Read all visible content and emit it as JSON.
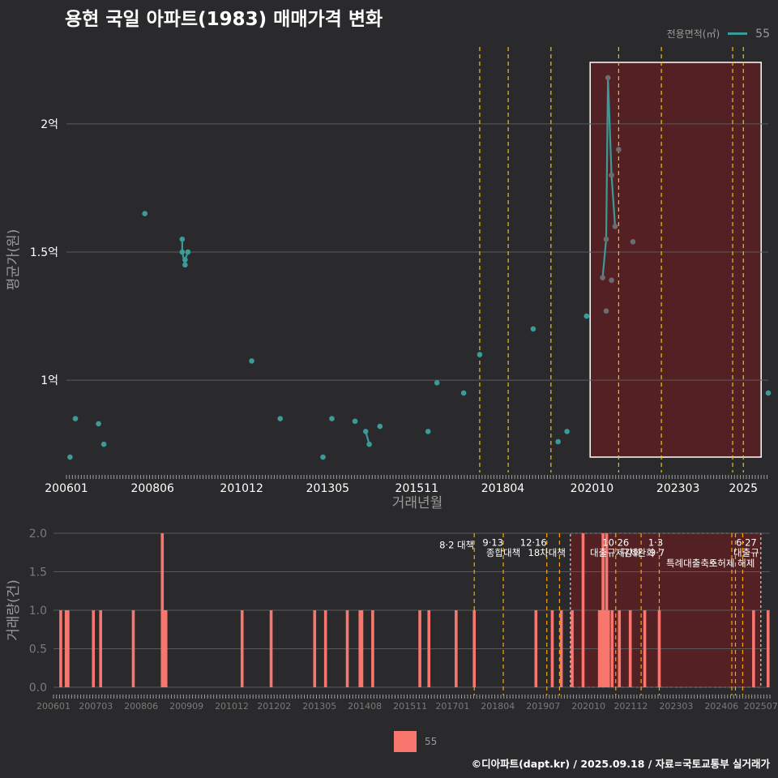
{
  "title": "용현 국일 아파트(1983) 매매가격 변화",
  "legend": {
    "label": "전용면적(㎡)",
    "value": "55"
  },
  "footer": "©디아파트(dapt.kr) / 2025.09.18 / 자료=국토교통부 실거래가",
  "colors": {
    "background": "#2a2a2c",
    "series": "#3a9b9b",
    "bar": "#f8766d",
    "vline": "#e6c619",
    "vline2": "#ffa500",
    "highlight_fill": "#5a1f22",
    "grid": "#5a5a5a"
  },
  "chart_data": [
    {
      "type": "line",
      "title": "용현 국일 아파트(1983) 매매가격 변화",
      "xlabel": "거래년월",
      "ylabel": "평균가(원)",
      "x_ticks": [
        "200601",
        "200806",
        "201012",
        "201305",
        "201511",
        "201804",
        "202010",
        "202303",
        "2025"
      ],
      "y_ticks": [
        {
          "value": 1.0,
          "label": "1억"
        },
        {
          "value": 1.5,
          "label": "1.5억"
        },
        {
          "value": 2.0,
          "label": "2억"
        }
      ],
      "xlim": [
        2006.0,
        2025.7
      ],
      "ylim": [
        0.64,
        2.3
      ],
      "series": [
        {
          "name": "55",
          "points": [
            {
              "x": 2006.1,
              "y": 0.7
            },
            {
              "x": 2006.25,
              "y": 0.85
            },
            {
              "x": 2006.9,
              "y": 0.83
            },
            {
              "x": 2007.05,
              "y": 0.75
            },
            {
              "x": 2008.2,
              "y": 1.65
            },
            {
              "x": 2009.25,
              "y": 1.55
            },
            {
              "x": 2009.25,
              "y": 1.5
            },
            {
              "x": 2009.33,
              "y": 1.45
            },
            {
              "x": 2009.33,
              "y": 1.47
            },
            {
              "x": 2009.41,
              "y": 1.5
            },
            {
              "x": 2011.2,
              "y": 1.075
            },
            {
              "x": 2012.0,
              "y": 0.85
            },
            {
              "x": 2013.2,
              "y": 0.7
            },
            {
              "x": 2013.45,
              "y": 0.85
            },
            {
              "x": 2014.1,
              "y": 0.84
            },
            {
              "x": 2014.4,
              "y": 0.8
            },
            {
              "x": 2014.5,
              "y": 0.75
            },
            {
              "x": 2014.8,
              "y": 0.82
            },
            {
              "x": 2016.15,
              "y": 0.8
            },
            {
              "x": 2016.4,
              "y": 0.99
            },
            {
              "x": 2017.15,
              "y": 0.95
            },
            {
              "x": 2017.6,
              "y": 1.1
            },
            {
              "x": 2019.1,
              "y": 1.2
            },
            {
              "x": 2019.8,
              "y": 0.76
            },
            {
              "x": 2020.05,
              "y": 0.8
            },
            {
              "x": 2020.6,
              "y": 1.25
            },
            {
              "x": 2021.05,
              "y": 1.4
            },
            {
              "x": 2021.15,
              "y": 1.27
            },
            {
              "x": 2021.15,
              "y": 1.55
            },
            {
              "x": 2021.2,
              "y": 2.18
            },
            {
              "x": 2021.3,
              "y": 1.8
            },
            {
              "x": 2021.3,
              "y": 1.39
            },
            {
              "x": 2021.4,
              "y": 1.6
            },
            {
              "x": 2021.5,
              "y": 1.9
            },
            {
              "x": 2021.9,
              "y": 1.54
            },
            {
              "x": 2025.7,
              "y": 0.95
            }
          ],
          "connected_segments": [
            [
              [
                2009.25,
                1.55
              ],
              [
                2009.25,
                1.5
              ],
              [
                2009.33,
                1.45
              ],
              [
                2009.33,
                1.47
              ],
              [
                2009.41,
                1.5
              ]
            ],
            [
              [
                2014.4,
                0.8
              ],
              [
                2014.5,
                0.75
              ]
            ],
            [
              [
                2021.05,
                1.4
              ],
              [
                2021.15,
                1.55
              ],
              [
                2021.2,
                2.18
              ],
              [
                2021.3,
                1.8
              ],
              [
                2021.4,
                1.6
              ]
            ]
          ]
        }
      ],
      "vlines": [
        2017.6,
        2018.4,
        2019.6,
        2021.5,
        2022.7,
        2024.7,
        2025.0
      ],
      "highlight_range": {
        "x": [
          2020.7,
          2025.5
        ],
        "y": [
          0.7,
          2.24
        ]
      }
    },
    {
      "type": "bar",
      "xlabel": "",
      "ylabel": "거래량(건)",
      "x_ticks": [
        "200601",
        "200703",
        "200806",
        "200909",
        "201012",
        "201202",
        "201305",
        "201408",
        "201511",
        "201701",
        "201804",
        "201907",
        "202010",
        "202112",
        "202303",
        "202406",
        "202507"
      ],
      "y_ticks": [
        0.0,
        0.5,
        1.0,
        1.5,
        2.0
      ],
      "ylim": [
        0,
        2
      ],
      "xlim": [
        2006.0,
        2025.75
      ],
      "series": [
        {
          "name": "55",
          "bars": [
            {
              "x": 2006.2,
              "value": 1
            },
            {
              "x": 2006.35,
              "value": 1
            },
            {
              "x": 2006.4,
              "value": 1
            },
            {
              "x": 2007.1,
              "value": 1
            },
            {
              "x": 2007.3,
              "value": 1
            },
            {
              "x": 2008.2,
              "value": 1
            },
            {
              "x": 2009.0,
              "value": 2
            },
            {
              "x": 2009.05,
              "value": 1
            },
            {
              "x": 2009.1,
              "value": 1
            },
            {
              "x": 2011.2,
              "value": 1
            },
            {
              "x": 2012.0,
              "value": 1
            },
            {
              "x": 2013.2,
              "value": 1
            },
            {
              "x": 2013.5,
              "value": 1
            },
            {
              "x": 2014.1,
              "value": 1
            },
            {
              "x": 2014.45,
              "value": 1
            },
            {
              "x": 2014.5,
              "value": 1
            },
            {
              "x": 2014.8,
              "value": 1
            },
            {
              "x": 2016.1,
              "value": 1
            },
            {
              "x": 2016.35,
              "value": 1
            },
            {
              "x": 2017.1,
              "value": 1
            },
            {
              "x": 2017.6,
              "value": 1
            },
            {
              "x": 2019.3,
              "value": 1
            },
            {
              "x": 2019.75,
              "value": 1
            },
            {
              "x": 2020.0,
              "value": 1
            },
            {
              "x": 2020.3,
              "value": 1
            },
            {
              "x": 2020.6,
              "value": 2
            },
            {
              "x": 2021.05,
              "value": 1
            },
            {
              "x": 2021.1,
              "value": 1
            },
            {
              "x": 2021.15,
              "value": 2
            },
            {
              "x": 2021.2,
              "value": 1
            },
            {
              "x": 2021.25,
              "value": 2
            },
            {
              "x": 2021.3,
              "value": 1
            },
            {
              "x": 2021.4,
              "value": 1
            },
            {
              "x": 2021.6,
              "value": 1
            },
            {
              "x": 2021.9,
              "value": 1
            },
            {
              "x": 2022.3,
              "value": 1
            },
            {
              "x": 2022.7,
              "value": 1
            },
            {
              "x": 2025.3,
              "value": 1
            },
            {
              "x": 2025.7,
              "value": 1
            }
          ]
        }
      ],
      "vlines": [
        2017.6,
        2018.4,
        2019.6,
        2019.95,
        2021.5,
        2022.2,
        2022.7,
        2024.7,
        2024.8,
        2025.0
      ],
      "highlight_range": {
        "x": [
          2020.25,
          2025.5
        ]
      },
      "annotations": [
        {
          "x": 2017.6,
          "y": 1.85,
          "text": "8·2 대책",
          "anchor": "end"
        },
        {
          "x": 2018.4,
          "y": 1.88,
          "text": "9·13",
          "anchor": "end"
        },
        {
          "x": 2018.4,
          "y": 1.75,
          "text": "종합대책",
          "anchor": "middle"
        },
        {
          "x": 2019.6,
          "y": 1.88,
          "text": "12·16",
          "anchor": "end"
        },
        {
          "x": 2019.6,
          "y": 1.75,
          "text": "18차대책",
          "anchor": "middle"
        },
        {
          "x": 2021.5,
          "y": 1.88,
          "text": "10·26",
          "anchor": "middle"
        },
        {
          "x": 2021.5,
          "y": 1.75,
          "text": "대출규제강화",
          "anchor": "middle"
        },
        {
          "x": 2022.6,
          "y": 1.88,
          "text": "1·3",
          "anchor": "middle"
        },
        {
          "x": 2022.1,
          "y": 1.75,
          "text": "규제완화",
          "anchor": "middle"
        },
        {
          "x": 2022.85,
          "y": 1.75,
          "text": "9·7",
          "anchor": "end"
        },
        {
          "x": 2023.6,
          "y": 1.61,
          "text": "특례대출축소",
          "anchor": "middle"
        },
        {
          "x": 2024.7,
          "y": 1.61,
          "text": "토허제 해제",
          "anchor": "middle"
        },
        {
          "x": 2025.1,
          "y": 1.88,
          "text": "6·27",
          "anchor": "middle"
        },
        {
          "x": 2025.1,
          "y": 1.75,
          "text": "대출규",
          "anchor": "middle"
        }
      ]
    }
  ]
}
